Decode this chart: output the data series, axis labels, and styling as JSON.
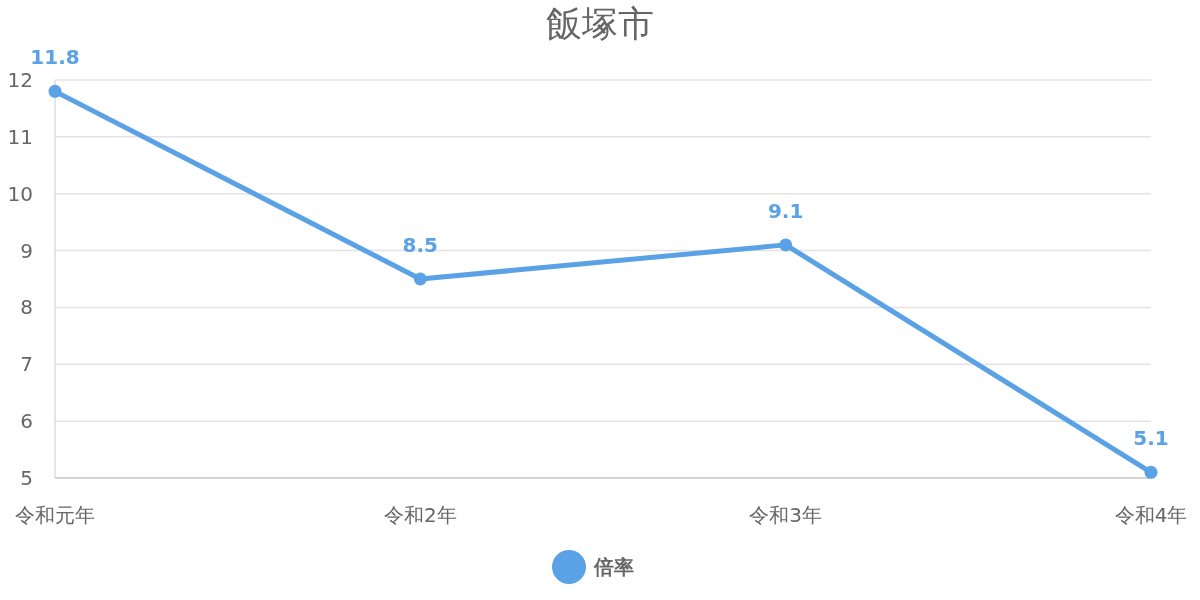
{
  "chart_data": {
    "type": "line",
    "title": "飯塚市",
    "categories": [
      "令和元年",
      "令和2年",
      "令和3年",
      "令和4年"
    ],
    "series": [
      {
        "name": "倍率",
        "color": "#5aa2e5",
        "values": [
          11.8,
          8.5,
          9.1,
          5.1
        ]
      }
    ],
    "ylim": [
      5,
      12
    ],
    "yticks": [
      5,
      6,
      7,
      8,
      9,
      10,
      11,
      12
    ],
    "grid": "y",
    "data_labels": true,
    "legend": "bottom",
    "marker": "circle",
    "line_style": "solid"
  }
}
